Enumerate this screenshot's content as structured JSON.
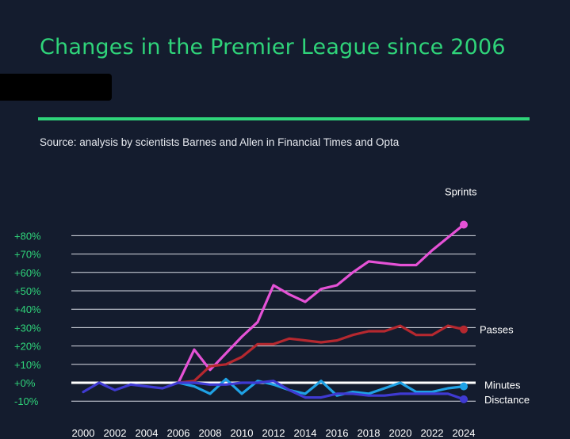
{
  "title": "Changes in the Premier League since 2006",
  "source": "Source: analysis by scientists Barnes and Allen in Financial Times and Opta",
  "colors": {
    "background": "#141c2e",
    "accent": "#2fd47a",
    "grid": "#d9dde6",
    "zero_line": "#ffffff",
    "tick_y": "#2fd47a",
    "tick_x": "#ffffff"
  },
  "chart_data": {
    "type": "line",
    "title": "Changes in the Premier League since 2006",
    "xlabel": "",
    "ylabel": "",
    "xlim": [
      2000,
      2024
    ],
    "ylim": [
      -10,
      80
    ],
    "x_ticks": [
      2000,
      2002,
      2004,
      2006,
      2008,
      2010,
      2012,
      2014,
      2016,
      2018,
      2020,
      2022,
      2024
    ],
    "x_tick_labels": [
      "2000",
      "2002",
      "2004",
      "2006",
      "2008",
      "2010",
      "2012",
      "2014",
      "2016",
      "2018",
      "2020",
      "2022",
      "2024"
    ],
    "y_ticks": [
      -10,
      0,
      10,
      20,
      30,
      40,
      50,
      60,
      70,
      80
    ],
    "y_tick_labels": [
      "-10%",
      "+0%",
      "+10%",
      "+20%",
      "+30%",
      "+40%",
      "+50%",
      "+60%",
      "+70%",
      "+80%"
    ],
    "grid": true,
    "legend": "direct labels at line ends",
    "series": [
      {
        "name": "Sprints",
        "color": "#e552d6",
        "x": [
          2006,
          2007,
          2008,
          2009,
          2010,
          2011,
          2012,
          2013,
          2014,
          2015,
          2016,
          2017,
          2018,
          2019,
          2020,
          2021,
          2022,
          2023,
          2024
        ],
        "values": [
          0,
          18,
          7,
          16,
          25,
          33,
          53,
          48,
          44,
          51,
          53,
          60,
          66,
          65,
          64,
          64,
          72,
          79,
          86
        ]
      },
      {
        "name": "Passes",
        "color": "#b5282f",
        "x": [
          2006,
          2007,
          2008,
          2009,
          2010,
          2011,
          2012,
          2013,
          2014,
          2015,
          2016,
          2017,
          2018,
          2019,
          2020,
          2021,
          2022,
          2023,
          2024
        ],
        "values": [
          0,
          1,
          9,
          10,
          14,
          21,
          21,
          24,
          23,
          22,
          23,
          26,
          28,
          28,
          31,
          26,
          26,
          31,
          29
        ]
      },
      {
        "name": "Minutes",
        "color": "#1fa2e6",
        "x": [
          2006,
          2007,
          2008,
          2009,
          2010,
          2011,
          2012,
          2013,
          2014,
          2015,
          2016,
          2017,
          2018,
          2019,
          2020,
          2021,
          2022,
          2023,
          2024
        ],
        "values": [
          0,
          -2,
          -6,
          2,
          -6,
          1,
          -1,
          -4,
          -6,
          1,
          -7,
          -5,
          -6,
          -3,
          0,
          -5,
          -5,
          -3,
          -2
        ]
      },
      {
        "name": "Disctance",
        "color": "#3f3ad2",
        "x": [
          2000,
          2001,
          2002,
          2003,
          2004,
          2005,
          2006,
          2007,
          2008,
          2009,
          2010,
          2011,
          2012,
          2013,
          2014,
          2015,
          2016,
          2017,
          2018,
          2019,
          2020,
          2021,
          2022,
          2023,
          2024
        ],
        "values": [
          -5,
          0,
          -4,
          -1,
          -2,
          -3,
          0,
          0,
          -1,
          -1,
          0,
          0,
          1,
          -4,
          -8,
          -8,
          -6,
          -6,
          -7,
          -7,
          -6,
          -6,
          -6,
          -6,
          -9
        ]
      }
    ]
  }
}
